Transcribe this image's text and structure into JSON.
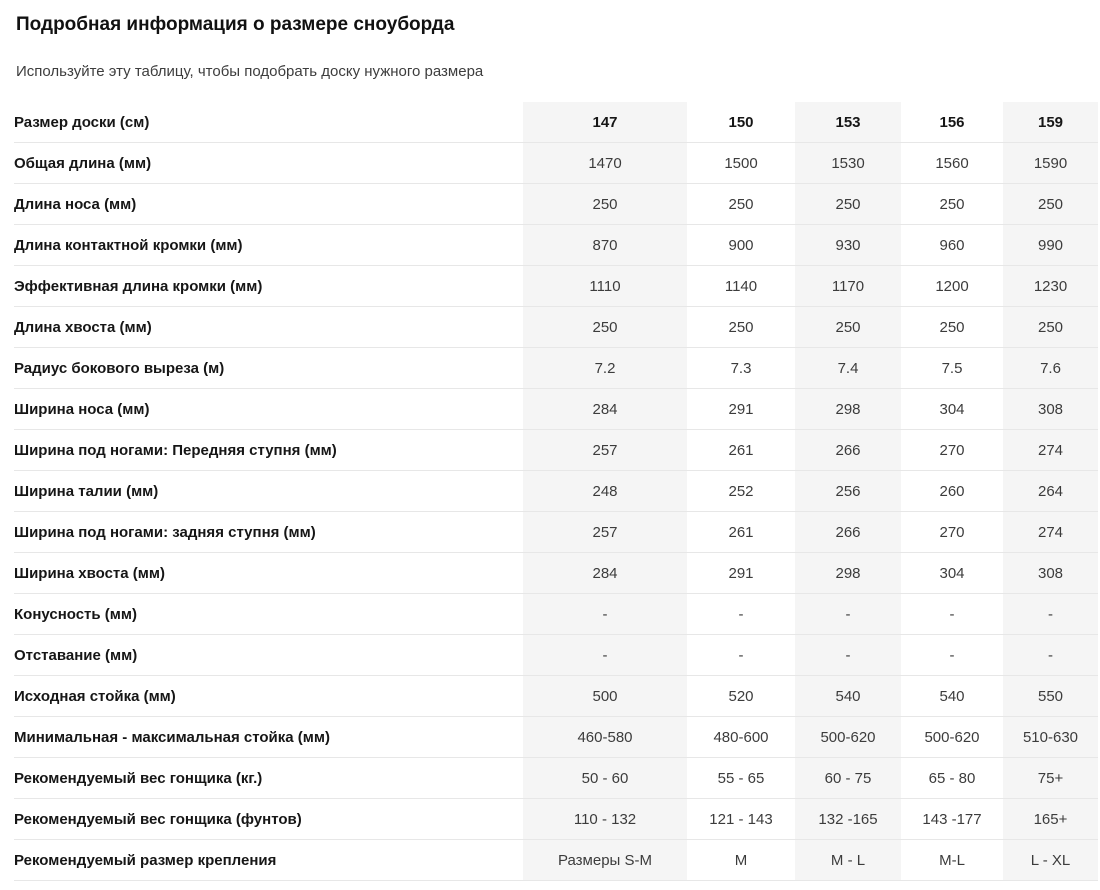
{
  "page": {
    "title": "Подробная информация о размере сноуборда",
    "subtitle": "Используйте эту таблицу, чтобы подобрать доску нужного размера"
  },
  "colors": {
    "stripe_background": "#f5f5f5",
    "row_border": "#e7e7e7",
    "title_text": "#111111",
    "body_text": "#3c3c3c"
  },
  "table": {
    "header": {
      "label": "Размер доски (см)",
      "columns": [
        "147",
        "150",
        "153",
        "156",
        "159"
      ]
    },
    "rows": [
      {
        "label": "Общая длина (мм)",
        "values": [
          "1470",
          "1500",
          "1530",
          "1560",
          "1590"
        ]
      },
      {
        "label": "Длина носа (мм)",
        "values": [
          "250",
          "250",
          "250",
          "250",
          "250"
        ]
      },
      {
        "label": "Длина контактной кромки (мм)",
        "values": [
          "870",
          "900",
          "930",
          "960",
          "990"
        ]
      },
      {
        "label": "Эффективная длина кромки (мм)",
        "values": [
          "1110",
          "1140",
          "1170",
          "1200",
          "1230"
        ]
      },
      {
        "label": "Длина хвоста (мм)",
        "values": [
          "250",
          "250",
          "250",
          "250",
          "250"
        ]
      },
      {
        "label": "Радиус бокового выреза (м)",
        "values": [
          "7.2",
          "7.3",
          "7.4",
          "7.5",
          "7.6"
        ]
      },
      {
        "label": "Ширина носа (мм)",
        "values": [
          "284",
          "291",
          "298",
          "304",
          "308"
        ]
      },
      {
        "label": "Ширина под ногами: Передняя ступня (мм)",
        "values": [
          "257",
          "261",
          "266",
          "270",
          "274"
        ]
      },
      {
        "label": "Ширина талии (мм)",
        "values": [
          "248",
          "252",
          "256",
          "260",
          "264"
        ]
      },
      {
        "label": "Ширина под ногами: задняя ступня (мм)",
        "values": [
          "257",
          "261",
          "266",
          "270",
          "274"
        ]
      },
      {
        "label": "Ширина хвоста (мм)",
        "values": [
          "284",
          "291",
          "298",
          "304",
          "308"
        ]
      },
      {
        "label": "Конусность (мм)",
        "values": [
          "-",
          "-",
          "-",
          "-",
          "-"
        ]
      },
      {
        "label": "Отставание (мм)",
        "values": [
          "-",
          "-",
          "-",
          "-",
          "-"
        ]
      },
      {
        "label": "Исходная стойка (мм)",
        "values": [
          "500",
          "520",
          "540",
          "540",
          "550"
        ]
      },
      {
        "label": "Минимальная - максимальная стойка (мм)",
        "values": [
          "460-580",
          "480-600",
          "500-620",
          "500-620",
          "510-630"
        ]
      },
      {
        "label": "Рекомендуемый вес гонщика (кг.)",
        "values": [
          "50 - 60",
          "55 - 65",
          "60 - 75",
          "65 - 80",
          "75+"
        ]
      },
      {
        "label": "Рекомендуемый вес гонщика (фунтов)",
        "values": [
          "110 - 132",
          "121 - 143",
          "132 -165",
          "143 -177",
          "165+"
        ]
      },
      {
        "label": "Рекомендуемый размер крепления",
        "values": [
          "Размеры S-M",
          "M",
          "M - L",
          "M-L",
          "L - XL"
        ]
      }
    ]
  }
}
